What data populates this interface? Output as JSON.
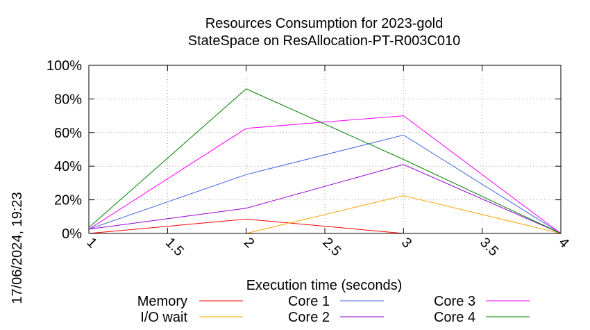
{
  "chart_data": {
    "type": "line",
    "title_line1": "Resources Consumption for 2023-gold",
    "title_line2": "StateSpace on ResAllocation-PT-R003C010",
    "xlabel": "Execution time (seconds)",
    "ylabel": "",
    "side_label": "17/06/2024, 19:23",
    "xlim": [
      1,
      4
    ],
    "ylim": [
      0,
      100
    ],
    "x_ticks": [
      1,
      1.5,
      2,
      2.5,
      3,
      3.5,
      4
    ],
    "x_tick_labels": [
      "1",
      "1.5",
      "2",
      "2.5",
      "3",
      "3.5",
      "4"
    ],
    "y_ticks": [
      0,
      20,
      40,
      60,
      80,
      100
    ],
    "y_tick_labels": [
      "0%",
      "20%",
      "40%",
      "60%",
      "80%",
      "100%"
    ],
    "grid": true,
    "legend_position": "bottom",
    "series": [
      {
        "name": "Memory",
        "color": "#ff0000",
        "points": [
          [
            1,
            0
          ],
          [
            2,
            8.5
          ],
          [
            3,
            0
          ],
          [
            3.1,
            0
          ]
        ]
      },
      {
        "name": "I/O wait",
        "color": "#ffa500",
        "points": [
          [
            2,
            0
          ],
          [
            3,
            22.5
          ],
          [
            4,
            0
          ]
        ]
      },
      {
        "name": "Core 1",
        "color": "#4169e1",
        "points": [
          [
            1,
            2.5
          ],
          [
            2,
            35
          ],
          [
            3,
            58.5
          ],
          [
            4,
            0
          ]
        ]
      },
      {
        "name": "Core 2",
        "color": "#9400d3",
        "points": [
          [
            1,
            2.5
          ],
          [
            2,
            15
          ],
          [
            3,
            41
          ],
          [
            4,
            0
          ]
        ]
      },
      {
        "name": "Core 3",
        "color": "#ff00ff",
        "points": [
          [
            1,
            2.5
          ],
          [
            2,
            62.5
          ],
          [
            3,
            70
          ],
          [
            4,
            0
          ]
        ]
      },
      {
        "name": "Core 4",
        "color": "#008000",
        "points": [
          [
            1,
            3.5
          ],
          [
            2,
            86
          ],
          [
            3,
            44
          ],
          [
            4,
            0
          ]
        ]
      }
    ]
  }
}
